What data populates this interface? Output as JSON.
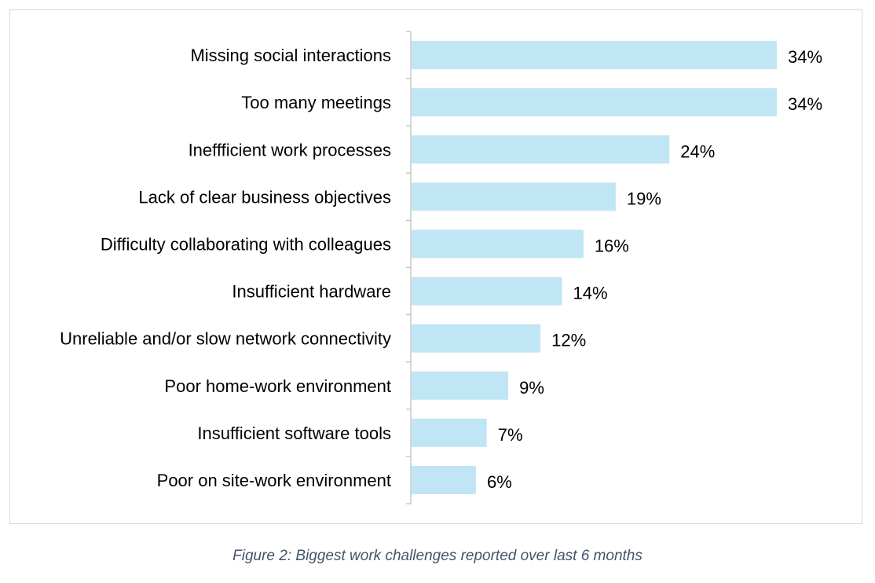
{
  "chart_data": {
    "type": "bar",
    "orientation": "horizontal",
    "categories": [
      "Missing social interactions",
      "Too many meetings",
      "Ineffficient work processes",
      "Lack of clear business objectives",
      "Difficulty collaborating with colleagues",
      "Insufficient hardware",
      "Unreliable and/or slow network connectivity",
      "Poor home-work environment",
      "Insufficient software tools",
      "Poor on site-work environment"
    ],
    "values": [
      34,
      34,
      24,
      19,
      16,
      14,
      12,
      9,
      7,
      6
    ],
    "value_labels": [
      "34%",
      "34%",
      "24%",
      "19%",
      "16%",
      "14%",
      "12%",
      "9%",
      "7%",
      "6%"
    ],
    "unit": "%",
    "title": "",
    "xlabel": "",
    "ylabel": "",
    "xlim": [
      0,
      34
    ],
    "grid": false,
    "legend": "none",
    "bar_color": "#c0e6f5",
    "axis_color": "#bfbfbf"
  },
  "caption": "Figure 2: Biggest work challenges reported over last 6 months"
}
